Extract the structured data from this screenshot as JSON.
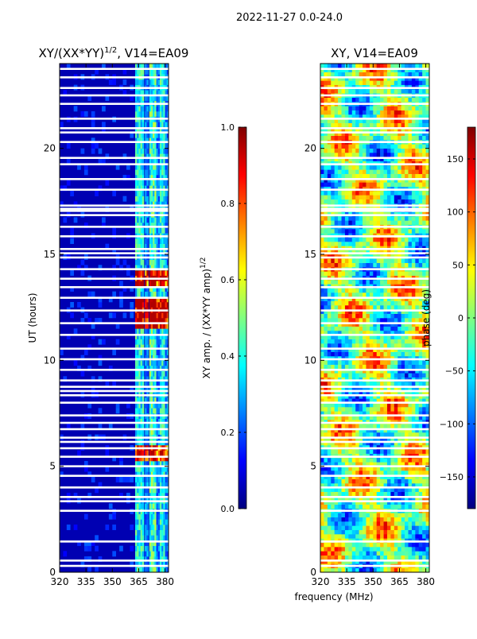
{
  "figure_title": "2022-11-27 0.0-24.0",
  "xlabel": "frequency (MHz)",
  "ylabel": "UT (hours)",
  "colors": {
    "jet": [
      "#00007f",
      "#0000ff",
      "#0080ff",
      "#00ffff",
      "#80ff80",
      "#ffff00",
      "#ff8000",
      "#ff0000",
      "#7f0000"
    ]
  },
  "chart_data": [
    {
      "type": "heatmap",
      "id": "amp",
      "title_prefix": "XY/(XX*YY)",
      "title_exp": "1/2",
      "title_suffix": ", V14=EA09",
      "x_range": [
        320,
        382
      ],
      "y_range": [
        0,
        24
      ],
      "x_ticks": [
        {
          "v": 320,
          "label": "320"
        },
        {
          "v": 335,
          "label": "335"
        },
        {
          "v": 350,
          "label": "350"
        },
        {
          "v": 365,
          "label": "365"
        },
        {
          "v": 380,
          "label": "380"
        }
      ],
      "y_ticks": [
        {
          "v": 0,
          "label": "0"
        },
        {
          "v": 5,
          "label": "5"
        },
        {
          "v": 10,
          "label": "10"
        },
        {
          "v": 15,
          "label": "15"
        },
        {
          "v": 20,
          "label": "20"
        }
      ],
      "colorbar": {
        "range": [
          0.0,
          1.0
        ],
        "ticks": [
          {
            "v": 0.0,
            "label": "0.0"
          },
          {
            "v": 0.2,
            "label": "0.2"
          },
          {
            "v": 0.4,
            "label": "0.4"
          },
          {
            "v": 0.6,
            "label": "0.6"
          },
          {
            "v": 0.8,
            "label": "0.8"
          },
          {
            "v": 1.0,
            "label": "1.0"
          }
        ],
        "label_prefix": "XY amp. / (XX*YY amp)",
        "label_exp": "1/2"
      },
      "flagged_hours": [
        0.3,
        0.55,
        1.45,
        2.9,
        3.35,
        3.55,
        4.0,
        4.55,
        5.0,
        5.45,
        5.85,
        6.15,
        6.35,
        6.75,
        7.05,
        7.4,
        8.0,
        8.35,
        8.55,
        8.75,
        9.05,
        9.55,
        10.05,
        10.55,
        11.2,
        11.75,
        12.35,
        12.95,
        13.45,
        13.85,
        14.3,
        14.85,
        15.05,
        15.25,
        15.85,
        16.3,
        16.85,
        17.05,
        17.15,
        17.3,
        18.05,
        18.55,
        19.25,
        19.55,
        20.3,
        20.75,
        20.95,
        21.4,
        22.1,
        22.5,
        22.85,
        23.35,
        23.75
      ],
      "bright_hours": [
        {
          "from": 11.6,
          "to": 13.1,
          "level": 0.78
        },
        {
          "from": 13.6,
          "to": 14.3,
          "level": 0.7
        },
        {
          "from": 5.3,
          "to": 6.0,
          "level": 0.62
        }
      ]
    },
    {
      "type": "heatmap",
      "id": "phase",
      "title": "XY, V14=EA09",
      "x_range": [
        320,
        382
      ],
      "y_range": [
        0,
        24
      ],
      "x_ticks": [
        {
          "v": 320,
          "label": "320"
        },
        {
          "v": 335,
          "label": "335"
        },
        {
          "v": 350,
          "label": "350"
        },
        {
          "v": 365,
          "label": "365"
        },
        {
          "v": 380,
          "label": "380"
        }
      ],
      "y_ticks": [
        {
          "v": 0,
          "label": "0"
        },
        {
          "v": 5,
          "label": "5"
        },
        {
          "v": 10,
          "label": "10"
        },
        {
          "v": 15,
          "label": "15"
        },
        {
          "v": 20,
          "label": "20"
        }
      ],
      "colorbar": {
        "range": [
          -180,
          180
        ],
        "ticks": [
          {
            "v": -150,
            "label": "−150"
          },
          {
            "v": -100,
            "label": "−100"
          },
          {
            "v": -50,
            "label": "−50"
          },
          {
            "v": 0,
            "label": "0"
          },
          {
            "v": 50,
            "label": "50"
          },
          {
            "v": 100,
            "label": "100"
          },
          {
            "v": 150,
            "label": "150"
          }
        ],
        "label": "phase (deg)"
      },
      "flagged_hours": [
        0.3,
        0.55,
        1.45,
        2.9,
        3.35,
        3.55,
        4.0,
        4.55,
        5.0,
        5.45,
        5.85,
        6.15,
        6.35,
        6.75,
        7.05,
        7.4,
        8.0,
        8.35,
        8.55,
        8.75,
        9.05,
        9.55,
        10.05,
        10.55,
        11.2,
        11.75,
        12.35,
        12.95,
        13.45,
        13.85,
        14.3,
        14.85,
        15.05,
        15.25,
        15.85,
        16.3,
        16.85,
        17.05,
        17.15,
        17.3,
        18.05,
        18.55,
        19.25,
        19.55,
        20.3,
        20.75,
        20.95,
        21.4,
        22.1,
        22.5,
        22.85,
        23.35,
        23.75
      ]
    }
  ]
}
